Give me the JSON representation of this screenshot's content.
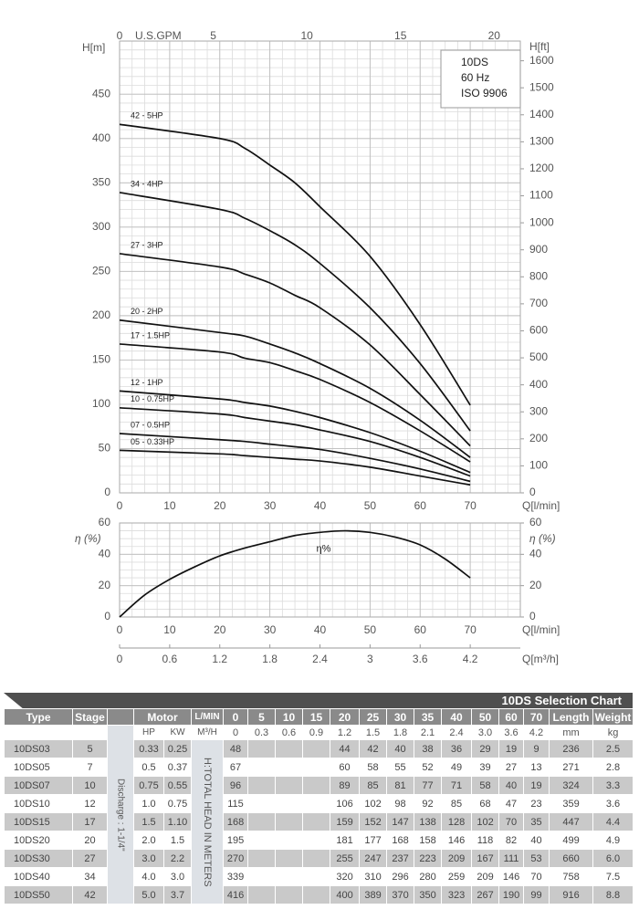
{
  "chart_data": [
    {
      "type": "line",
      "x": [
        0,
        20,
        25,
        30,
        35,
        40,
        50,
        60,
        70
      ],
      "xlim": [
        0,
        80
      ],
      "xticks": [
        0,
        10,
        20,
        30,
        40,
        50,
        60,
        70
      ],
      "xlabel": "Q[l/min]",
      "ylim": [
        0,
        510
      ],
      "yticks": [
        0,
        50,
        100,
        150,
        200,
        250,
        300,
        350,
        400,
        450
      ],
      "ylabel": "H[m]",
      "y2lim": [
        0,
        1673
      ],
      "y2ticks": [
        0,
        100,
        200,
        300,
        400,
        500,
        600,
        700,
        800,
        900,
        1000,
        1100,
        1200,
        1300,
        1400,
        1500,
        1600
      ],
      "y2label": "H[ft]",
      "x2lim": [
        0,
        21.4
      ],
      "x2ticks": [
        0,
        5,
        10,
        15,
        20
      ],
      "x2label": "U.S.GPM",
      "grid": true,
      "minor_grid": {
        "x": 2.5,
        "y": 10
      },
      "annotations": [
        "10DS",
        "60 Hz",
        "ISO 9906"
      ],
      "series": [
        {
          "name": "42 - 5HP",
          "color": "#111111",
          "values": [
            416,
            400,
            389,
            370,
            350,
            323,
            267,
            190,
            99
          ]
        },
        {
          "name": "34 - 4HP",
          "color": "#111111",
          "values": [
            339,
            320,
            310,
            296,
            280,
            259,
            209,
            146,
            70
          ]
        },
        {
          "name": "27 - 3HP",
          "color": "#111111",
          "values": [
            270,
            255,
            247,
            237,
            223,
            209,
            167,
            111,
            53
          ]
        },
        {
          "name": "20 - 2HP",
          "color": "#111111",
          "values": [
            195,
            181,
            177,
            168,
            158,
            146,
            118,
            82,
            40
          ]
        },
        {
          "name": "17 - 1.5HP",
          "color": "#111111",
          "values": [
            168,
            159,
            152,
            147,
            138,
            128,
            102,
            70,
            35
          ]
        },
        {
          "name": "12 - 1HP",
          "color": "#111111",
          "values": [
            115,
            106,
            102,
            98,
            92,
            85,
            68,
            47,
            23
          ]
        },
        {
          "name": "10 - 0.75HP",
          "color": "#111111",
          "values": [
            96,
            89,
            85,
            81,
            77,
            71,
            58,
            40,
            19
          ]
        },
        {
          "name": "07 - 0.5HP",
          "color": "#111111",
          "values": [
            67,
            60,
            58,
            55,
            52,
            49,
            39,
            27,
            13
          ]
        },
        {
          "name": "05 - 0.33HP",
          "color": "#111111",
          "values": [
            48,
            44,
            42,
            40,
            38,
            36,
            29,
            19,
            9
          ]
        }
      ]
    },
    {
      "type": "line",
      "x": [
        0,
        5,
        10,
        15,
        20,
        25,
        30,
        35,
        40,
        45,
        50,
        55,
        60,
        65,
        70
      ],
      "xlim": [
        0,
        80
      ],
      "xticks": [
        0,
        10,
        20,
        30,
        40,
        50,
        60,
        70
      ],
      "xlabel": "Q[l/min]",
      "ylim": [
        0,
        60
      ],
      "yticks": [
        0,
        20,
        40,
        60
      ],
      "ylabel": "η (%)",
      "y2lim": [
        0,
        60
      ],
      "y2ticks": [
        0,
        20,
        40,
        60
      ],
      "y2label": "η (%)",
      "x2lim": [
        0,
        4.8
      ],
      "x2ticks": [
        0,
        0.6,
        1.2,
        1.8,
        2.4,
        3,
        3.6,
        4.2
      ],
      "x2label": "Q[m³/h]",
      "grid": true,
      "minor_grid": {
        "x": 2.5,
        "y": 5
      },
      "series": [
        {
          "name": "η%",
          "color": "#111111",
          "values": [
            0,
            14,
            24,
            32,
            39,
            44,
            48,
            52,
            54,
            55,
            54,
            51,
            46,
            37,
            25
          ]
        }
      ]
    }
  ],
  "table": {
    "title": "10DS Selection Chart",
    "header": {
      "type": "Type",
      "stage": "Stage",
      "motor": "Motor",
      "hp": "HP",
      "kw": "KW",
      "flow": "L/MIN",
      "flow_unit": "M³/H",
      "flows": [
        0,
        5,
        10,
        15,
        20,
        25,
        30,
        35,
        40,
        50,
        60,
        70
      ],
      "flows_m3h": [
        0,
        0.3,
        0.6,
        0.9,
        1.2,
        1.5,
        1.8,
        2.1,
        2.4,
        "3.0",
        3.6,
        4.2
      ],
      "length": "Length",
      "length_unit": "mm",
      "weight": "Weight",
      "weight_unit": "kg"
    },
    "discharge": "Discharge : 1-1/4\"",
    "head_note": "H:TOTAL HEAD IN METERS",
    "rows": [
      {
        "type": "10DS03",
        "stage": 5,
        "hp": 0.33,
        "kw": 0.25,
        "heads": [
          48,
          null,
          null,
          null,
          44,
          42,
          40,
          38,
          36,
          29,
          19,
          9
        ],
        "length": 236,
        "weight": 2.5
      },
      {
        "type": "10DS05",
        "stage": 7,
        "hp": 0.5,
        "kw": 0.37,
        "heads": [
          67,
          null,
          null,
          null,
          60,
          58,
          55,
          52,
          49,
          39,
          27,
          13
        ],
        "length": 271,
        "weight": 2.8
      },
      {
        "type": "10DS07",
        "stage": 10,
        "hp": 0.75,
        "kw": 0.55,
        "heads": [
          96,
          null,
          null,
          null,
          89,
          85,
          81,
          77,
          71,
          58,
          40,
          19
        ],
        "length": 324,
        "weight": 3.3
      },
      {
        "type": "10DS10",
        "stage": 12,
        "hp": "1.0",
        "kw": 0.75,
        "heads": [
          115,
          null,
          null,
          null,
          106,
          102,
          98,
          92,
          85,
          68,
          47,
          23
        ],
        "length": 359,
        "weight": 3.6
      },
      {
        "type": "10DS15",
        "stage": 17,
        "hp": 1.5,
        "kw": "1.10",
        "heads": [
          168,
          null,
          null,
          null,
          159,
          152,
          147,
          138,
          128,
          102,
          70,
          35
        ],
        "length": 447,
        "weight": 4.4
      },
      {
        "type": "10DS20",
        "stage": 20,
        "hp": "2.0",
        "kw": 1.5,
        "heads": [
          195,
          null,
          null,
          null,
          181,
          177,
          168,
          158,
          146,
          118,
          82,
          40
        ],
        "length": 499,
        "weight": 4.9
      },
      {
        "type": "10DS30",
        "stage": 27,
        "hp": "3.0",
        "kw": 2.2,
        "heads": [
          270,
          null,
          null,
          null,
          255,
          247,
          237,
          223,
          209,
          167,
          111,
          53
        ],
        "length": 660,
        "weight": "6.0"
      },
      {
        "type": "10DS40",
        "stage": 34,
        "hp": "4.0",
        "kw": "3.0",
        "heads": [
          339,
          null,
          null,
          null,
          320,
          310,
          296,
          280,
          259,
          209,
          146,
          70
        ],
        "length": 758,
        "weight": 7.5
      },
      {
        "type": "10DS50",
        "stage": 42,
        "hp": "5.0",
        "kw": 3.7,
        "heads": [
          416,
          null,
          null,
          null,
          400,
          389,
          370,
          350,
          323,
          267,
          190,
          99
        ],
        "length": 916,
        "weight": 8.8
      }
    ]
  }
}
